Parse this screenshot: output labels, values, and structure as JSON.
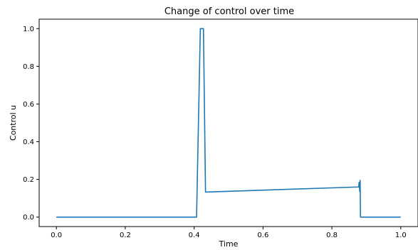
{
  "chart_data": {
    "type": "line",
    "title": "Change of control over time",
    "xlabel": "Time",
    "ylabel": "Control u",
    "xlim": [
      -0.05,
      1.05
    ],
    "ylim": [
      -0.05,
      1.05
    ],
    "xticks": [
      "0.0",
      "0.2",
      "0.4",
      "0.6",
      "0.8",
      "1.0"
    ],
    "yticks": [
      "0.0",
      "0.2",
      "0.4",
      "0.6",
      "0.8",
      "1.0"
    ],
    "grid": false,
    "legend": "none",
    "colors": {
      "series": "#1f77b4",
      "axes": "#000000",
      "background": "#ffffff"
    },
    "series": [
      {
        "x": [
          0.0,
          0.407,
          0.418,
          0.42,
          0.427,
          0.433,
          0.878,
          0.879,
          0.881,
          0.882,
          0.883,
          0.884,
          0.9,
          1.0
        ],
        "y": [
          0.0,
          0.0,
          1.0,
          1.0,
          1.0,
          0.133,
          0.16,
          0.185,
          0.135,
          0.195,
          0.0,
          0.0,
          0.0,
          0.0
        ]
      }
    ]
  }
}
